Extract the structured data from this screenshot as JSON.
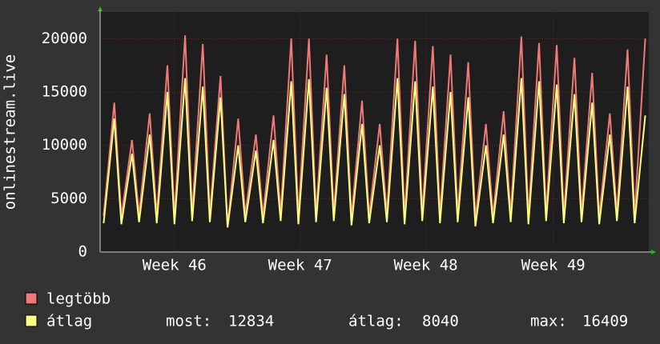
{
  "chart_data": {
    "type": "line",
    "y_label": "onlinestream.live",
    "x": [
      0.2,
      0.8,
      1.2,
      1.8,
      2.2,
      2.8,
      3.2,
      3.8,
      4.2,
      4.8,
      5.2,
      5.8,
      6.2,
      6.8,
      7.2,
      7.8,
      8.2,
      8.8,
      9.2,
      9.8,
      10.2,
      10.8,
      11.2,
      11.8,
      12.2,
      12.8,
      13.2,
      13.8,
      14.2,
      14.8,
      15.2,
      15.8,
      16.2,
      16.8,
      17.2,
      17.8,
      18.2,
      18.8,
      19.2,
      19.8,
      20.2,
      20.8,
      21.2,
      21.8,
      22.2,
      22.8,
      23.2,
      23.8,
      24.2,
      24.8,
      25.2,
      25.8,
      26.2,
      26.8,
      27.2,
      27.8,
      28.2,
      28.8,
      29.2,
      29.8,
      30.2,
      30.8
    ],
    "xlim": [
      0,
      31
    ],
    "xticks": [
      {
        "value": 4.2,
        "label": "Week 46"
      },
      {
        "value": 11.3,
        "label": "Week 47"
      },
      {
        "value": 18.4,
        "label": "Week 48"
      },
      {
        "value": 25.6,
        "label": "Week 49"
      }
    ],
    "ylim": [
      0,
      22500
    ],
    "yticks": [
      0,
      5000,
      10000,
      15000,
      20000
    ],
    "grid": true,
    "series": [
      {
        "name": "legtöbb",
        "color": "#f07878",
        "values": [
          3400,
          14000,
          3300,
          10500,
          3500,
          13000,
          3400,
          17500,
          3300,
          20300,
          3600,
          19500,
          3500,
          16500,
          2400,
          12500,
          3500,
          11000,
          3400,
          12800,
          3600,
          20000,
          3300,
          20000,
          3500,
          18500,
          3600,
          17500,
          3200,
          14200,
          3400,
          12000,
          3500,
          20000,
          3300,
          19800,
          3600,
          19300,
          3400,
          18500,
          3500,
          17800,
          3100,
          12000,
          3400,
          13200,
          3500,
          20200,
          3300,
          19600,
          3600,
          19400,
          3400,
          18200,
          3500,
          16800,
          3300,
          13000,
          3600,
          19000,
          3400,
          20000
        ]
      },
      {
        "name": "átlag",
        "color": "#ffff80",
        "values": [
          2700,
          12500,
          2600,
          9200,
          2800,
          11000,
          2700,
          15000,
          2600,
          16300,
          2900,
          15500,
          2800,
          14500,
          2300,
          10000,
          2800,
          9500,
          2700,
          10500,
          2900,
          16000,
          2600,
          16200,
          2800,
          15400,
          2900,
          14800,
          2500,
          12000,
          2700,
          10000,
          2800,
          16300,
          2600,
          16000,
          2900,
          15500,
          2700,
          15000,
          2800,
          14500,
          2400,
          10000,
          2700,
          11000,
          2800,
          16300,
          2600,
          16000,
          2900,
          15700,
          2700,
          14800,
          2800,
          14000,
          2600,
          11000,
          2900,
          15500,
          2700,
          12800
        ]
      }
    ],
    "stats": [
      {
        "label": "most:",
        "value": 12834
      },
      {
        "label": "átlag:",
        "value": 8040
      },
      {
        "label": "max:",
        "value": 16409
      }
    ]
  }
}
